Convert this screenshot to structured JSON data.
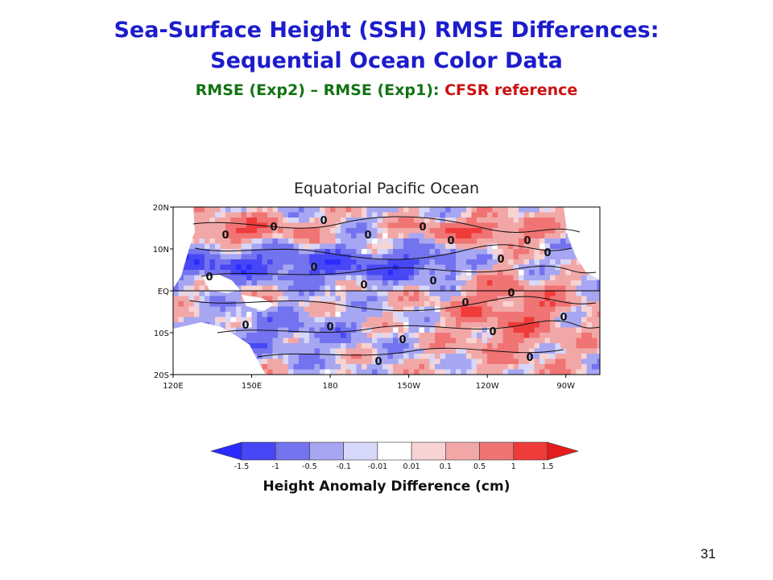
{
  "slide": {
    "title_line1": "Sea-Surface Height (SSH) RMSE Differences:",
    "title_line2": "Sequential Ocean Color Data",
    "subtitle_green": "RMSE (Exp2) – RMSE (Exp1):",
    "subtitle_red": "CFSR reference",
    "page_number": "31"
  },
  "chart_data": {
    "type": "heatmap",
    "title": "Equatorial Pacific Ocean",
    "x_ticks": [
      "120E",
      "150E",
      "180",
      "150W",
      "120W",
      "90W"
    ],
    "x_tick_lon": [
      120,
      150,
      180,
      210,
      240,
      270
    ],
    "y_ticks": [
      "20N",
      "10N",
      "EQ",
      "10S",
      "20S"
    ],
    "y_tick_lat": [
      20,
      10,
      0,
      -10,
      -20
    ],
    "xlim_lon": [
      120,
      283
    ],
    "ylim_lat": [
      -20,
      20
    ],
    "contour_label": "0",
    "colorbar": {
      "label": "Height Anomaly Difference (cm)",
      "tick_labels": [
        "-1.5",
        "-1",
        "-0.5",
        "-0.1",
        "-0.01",
        "0.01",
        "0.1",
        "0.5",
        "1",
        "1.5"
      ],
      "colors": [
        "#2b2bff",
        "#4747f5",
        "#7373ef",
        "#a6a6f2",
        "#d7d7f9",
        "#ffffff",
        "#f7d3d3",
        "#f2a7a7",
        "#f07474",
        "#f03b3b",
        "#e61d1d"
      ]
    }
  }
}
